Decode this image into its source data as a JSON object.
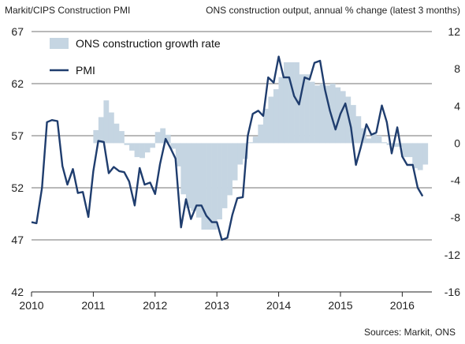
{
  "header": {
    "left_title": "Markit/CIPS Construction PMI",
    "right_title": "ONS construction output, annual % change (latest 3 months)"
  },
  "footer": {
    "sources": "Sources:  Markit, ONS"
  },
  "colors": {
    "bars": "#c5d5e2",
    "line": "#1f3d6e",
    "gridline": "#444444"
  },
  "chart_data": {
    "type": "line",
    "title": "",
    "x_ticks": [
      "2010",
      "2011",
      "2012",
      "2013",
      "2014",
      "2015",
      "2016"
    ],
    "x_range": [
      2010.0,
      2016.48
    ],
    "y_left": {
      "label": "Markit/CIPS Construction PMI",
      "ticks": [
        42,
        47,
        52,
        57,
        62,
        67
      ],
      "range": [
        42,
        67
      ]
    },
    "y_right": {
      "label": "ONS construction output, annual % change (latest 3 months)",
      "ticks": [
        -16,
        -12,
        -8,
        -4,
        0,
        4,
        8,
        12
      ],
      "range": [
        -16,
        12
      ]
    },
    "grid": "horizontal",
    "legend": {
      "position": "top-left",
      "entries": [
        "ONS construction growth rate",
        "PMI"
      ]
    },
    "series": [
      {
        "name": "ONS construction growth rate",
        "axis": "right",
        "kind": "bar",
        "x_start": 2010.0,
        "x_step": 0.0833,
        "values": [
          null,
          null,
          null,
          null,
          null,
          null,
          null,
          null,
          null,
          null,
          null,
          null,
          1.4,
          2.8,
          4.6,
          3.3,
          2.1,
          1.3,
          -0.2,
          -0.8,
          -1.5,
          -1.6,
          -1.0,
          -0.5,
          1.2,
          1.6,
          0.9,
          -0.6,
          -2.5,
          -5.5,
          -7.0,
          -7.3,
          -8.0,
          -9.3,
          -9.3,
          -9.3,
          -8.2,
          -7.0,
          -5.6,
          -4.0,
          -2.3,
          -1.7,
          0.1,
          0.7,
          2.0,
          3.7,
          5.0,
          5.8,
          7.1,
          8.7,
          8.7,
          8.7,
          7.4,
          7.4,
          6.6,
          6.2,
          6.4,
          6.2,
          6.4,
          6.0,
          5.6,
          5.0,
          4.1,
          2.9,
          1.6,
          0.5,
          1.0,
          0.8,
          0.1,
          -0.2,
          -0.4,
          -0.4,
          -1.5,
          -1.5,
          -2.7,
          -2.9,
          -2.3
        ]
      },
      {
        "name": "PMI",
        "axis": "left",
        "kind": "line",
        "x": [
          2010.0,
          2010.08,
          2010.17,
          2010.25,
          2010.33,
          2010.42,
          2010.5,
          2010.58,
          2010.67,
          2010.75,
          2010.83,
          2010.92,
          2011.0,
          2011.08,
          2011.17,
          2011.25,
          2011.33,
          2011.42,
          2011.5,
          2011.58,
          2011.67,
          2011.75,
          2011.83,
          2011.92,
          2012.0,
          2012.08,
          2012.17,
          2012.25,
          2012.33,
          2012.42,
          2012.5,
          2012.58,
          2012.67,
          2012.75,
          2012.83,
          2012.92,
          2013.0,
          2013.08,
          2013.17,
          2013.25,
          2013.33,
          2013.42,
          2013.5,
          2013.58,
          2013.67,
          2013.75,
          2013.83,
          2013.92,
          2014.0,
          2014.08,
          2014.17,
          2014.25,
          2014.33,
          2014.42,
          2014.5,
          2014.58,
          2014.67,
          2014.75,
          2014.83,
          2014.92,
          2015.0,
          2015.08,
          2015.17,
          2015.25,
          2015.33,
          2015.42,
          2015.5,
          2015.58,
          2015.67,
          2015.75,
          2015.83,
          2015.92,
          2016.0,
          2016.08,
          2016.17,
          2016.25,
          2016.33
        ],
        "values": [
          48.7,
          48.6,
          52.0,
          58.3,
          58.5,
          58.4,
          54.1,
          52.3,
          53.8,
          51.5,
          51.6,
          49.2,
          53.6,
          56.5,
          56.4,
          53.4,
          54.0,
          53.6,
          53.5,
          52.6,
          50.3,
          53.9,
          52.3,
          52.5,
          51.4,
          54.3,
          56.7,
          55.8,
          54.8,
          48.2,
          50.9,
          49.0,
          50.3,
          50.3,
          49.3,
          48.7,
          48.7,
          47.0,
          47.2,
          49.4,
          51.0,
          51.1,
          57.0,
          59.1,
          59.4,
          58.9,
          62.6,
          62.1,
          64.6,
          62.6,
          62.6,
          60.8,
          60.0,
          62.6,
          62.4,
          64.0,
          64.2,
          61.4,
          59.4,
          57.6,
          59.1,
          60.1,
          57.8,
          54.2,
          55.9,
          58.1,
          57.1,
          57.3,
          59.9,
          58.3,
          55.3,
          57.8,
          55.0,
          54.2,
          54.2,
          52.0,
          51.2
        ]
      }
    ]
  }
}
